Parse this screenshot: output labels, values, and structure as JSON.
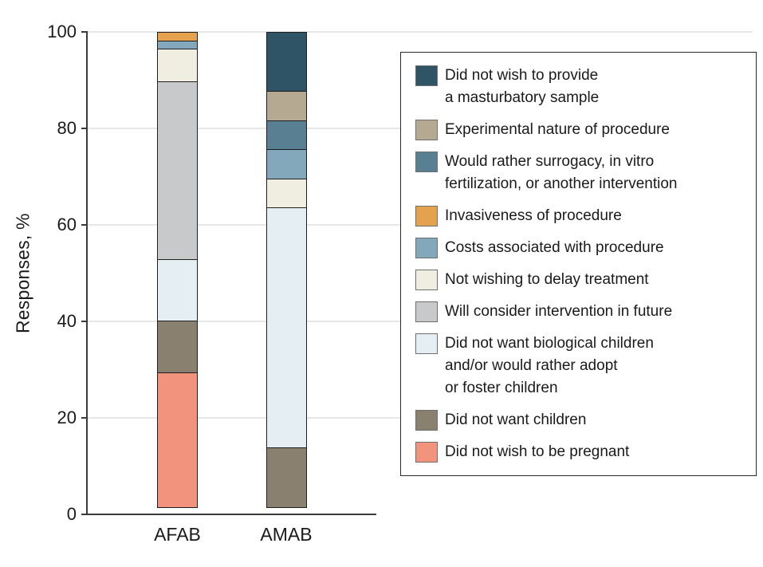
{
  "figure": {
    "background": "#ffffff",
    "text_color": "#1a1a1a",
    "grid_color": "#e7e7e7",
    "axis_color": "#3a3a3a",
    "segment_outline_color": "#1f1f1f"
  },
  "chart_data": {
    "type": "bar",
    "subtype": "stacked-vertical-100pct",
    "title": "",
    "xlabel": "",
    "ylabel": "Responses, %",
    "ylim": [
      0,
      100
    ],
    "yticks": [
      0,
      20,
      40,
      60,
      80,
      100
    ],
    "grid": "horizontal-light",
    "legend_position": "right-boxed",
    "categories": [
      "AFAB",
      "AMAB"
    ],
    "stack_note": "series are listed in legend order, which is also top-to-bottom stacking order in each bar; zero-value segments are omitted",
    "series": [
      {
        "name": "Did not wish to provide a masturbatory sample",
        "legend_label": "Did not wish to provide\na masturbatory sample",
        "color": "#2e5466",
        "values": [
          0,
          12.5
        ]
      },
      {
        "name": "Experimental nature of procedure",
        "legend_label": "Experimental nature of procedure",
        "color": "#b5a992",
        "values": [
          0,
          6.25
        ]
      },
      {
        "name": "Would rather surrogacy, in vitro fertilization, or another intervention",
        "legend_label": "Would rather surrogacy, in vitro\nfertilization, or another intervention",
        "color": "#587f92",
        "values": [
          0,
          6.25
        ]
      },
      {
        "name": "Invasiveness of procedure",
        "legend_label": "Invasiveness of procedure",
        "color": "#e5a24e",
        "values": [
          2,
          0
        ]
      },
      {
        "name": "Costs associated with procedure",
        "legend_label": "Costs associated with procedure",
        "color": "#84a8bb",
        "values": [
          2,
          6.25
        ]
      },
      {
        "name": "Not wishing to delay treatment",
        "legend_label": "Not wishing to delay treatment",
        "color": "#efeee1",
        "values": [
          7,
          6.25
        ]
      },
      {
        "name": "Will consider intervention in future",
        "legend_label": "Will consider intervention in future",
        "color": "#c8c9cb",
        "values": [
          37,
          0
        ]
      },
      {
        "name": "Did not want biological children and/or would rather adopt or foster children",
        "legend_label": "Did not want biological children\nand/or would rather adopt\nor foster children",
        "color": "#e5eef3",
        "values": [
          13,
          50
        ]
      },
      {
        "name": "Did not want children",
        "legend_label": "Did not want children",
        "color": "#8a8070",
        "values": [
          11,
          12.5
        ]
      },
      {
        "name": "Did not wish to be pregnant",
        "legend_label": "Did not wish to be pregnant",
        "color": "#f2937e",
        "values": [
          28,
          0
        ]
      }
    ]
  }
}
